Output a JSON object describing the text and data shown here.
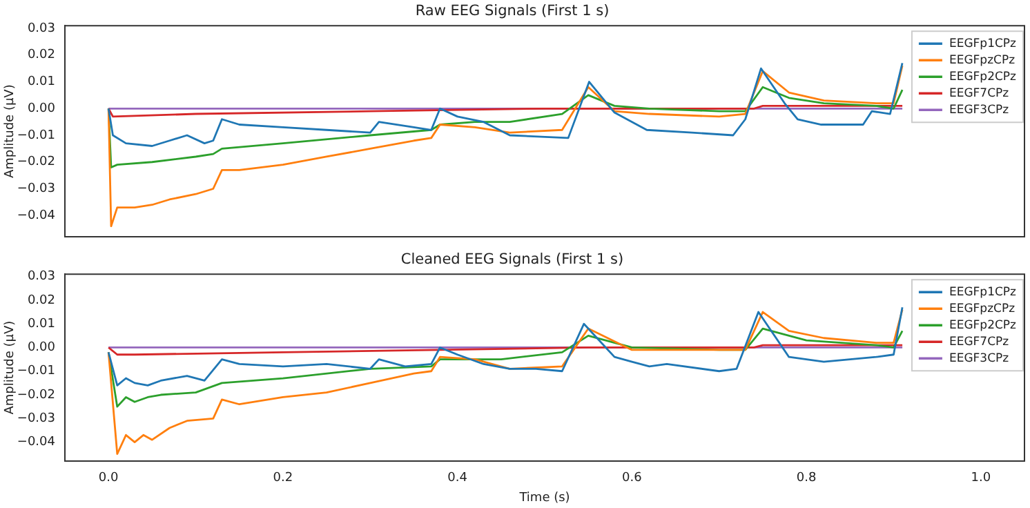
{
  "chart_data": [
    {
      "type": "line",
      "title": "Raw EEG Signals (First 1 s)",
      "ylabel": "Amplitude (μV)",
      "legend": "top right",
      "tick_labels": "y",
      "xlim": [
        -0.05,
        1.05
      ],
      "xticks": [
        {
          "value": 0,
          "label": null
        },
        {
          "value": 0.2,
          "label": null
        },
        {
          "value": 0.4,
          "label": null
        },
        {
          "value": 0.6,
          "label": null
        },
        {
          "value": 0.8,
          "label": null
        },
        {
          "value": 1,
          "label": null
        }
      ],
      "ylim": [
        -0.048,
        0.031
      ],
      "yticks": [
        {
          "value": -0.04,
          "label": "−0.04"
        },
        {
          "value": -0.03,
          "label": "−0.03"
        },
        {
          "value": -0.02,
          "label": "−0.02"
        },
        {
          "value": -0.01,
          "label": "−0.01"
        },
        {
          "value": 0,
          "label": "0.00"
        },
        {
          "value": 0.01,
          "label": "0.01"
        },
        {
          "value": 0.02,
          "label": "0.02"
        },
        {
          "value": 0.03,
          "label": "0.03"
        }
      ],
      "series": [
        {
          "name": "EEGFp1CPz",
          "color": "#1f77b4",
          "x": [
            0,
            0.005,
            0.02,
            0.05,
            0.07,
            0.09,
            0.11,
            0.12,
            0.13,
            0.15,
            0.2,
            0.25,
            0.3,
            0.31,
            0.35,
            0.37,
            0.38,
            0.4,
            0.43,
            0.46,
            0.527,
            0.551,
            0.58,
            0.617,
            0.669,
            0.716,
            0.73,
            0.748,
            0.775,
            0.79,
            0.817,
            0.865,
            0.875,
            0.896,
            0.91
          ],
          "values": [
            0,
            -0.01,
            -0.013,
            -0.014,
            -0.012,
            -0.01,
            -0.013,
            -0.012,
            -0.004,
            -0.006,
            -0.007,
            -0.008,
            -0.009,
            -0.005,
            -0.007,
            -0.008,
            0,
            -0.003,
            -0.005,
            -0.01,
            -0.011,
            0.01,
            -0.0015,
            -0.008,
            -0.009,
            -0.01,
            -0.004,
            0.015,
            0.002,
            -0.004,
            -0.006,
            -0.006,
            -0.001,
            -0.002,
            0.017
          ]
        },
        {
          "name": "EEGFpzCPz",
          "color": "#ff7f0e",
          "x": [
            0,
            0.003,
            0.01,
            0.03,
            0.05,
            0.07,
            0.1,
            0.12,
            0.13,
            0.15,
            0.2,
            0.25,
            0.3,
            0.35,
            0.37,
            0.38,
            0.42,
            0.46,
            0.52,
            0.55,
            0.58,
            0.62,
            0.7,
            0.73,
            0.75,
            0.78,
            0.82,
            0.88,
            0.9,
            0.91
          ],
          "values": [
            0,
            -0.044,
            -0.037,
            -0.037,
            -0.036,
            -0.034,
            -0.032,
            -0.03,
            -0.023,
            -0.023,
            -0.021,
            -0.018,
            -0.015,
            -0.012,
            -0.011,
            -0.006,
            -0.007,
            -0.009,
            -0.008,
            0.008,
            -0.001,
            -0.002,
            -0.003,
            -0.002,
            0.014,
            0.006,
            0.003,
            0.002,
            0.002,
            0.016
          ]
        },
        {
          "name": "EEGFp2CPz",
          "color": "#2ca02c",
          "x": [
            0,
            0.003,
            0.01,
            0.05,
            0.1,
            0.12,
            0.13,
            0.2,
            0.3,
            0.37,
            0.38,
            0.42,
            0.46,
            0.52,
            0.55,
            0.58,
            0.62,
            0.7,
            0.73,
            0.75,
            0.78,
            0.82,
            0.88,
            0.9,
            0.91
          ],
          "values": [
            0,
            -0.022,
            -0.021,
            -0.02,
            -0.018,
            -0.017,
            -0.015,
            -0.013,
            -0.01,
            -0.008,
            -0.006,
            -0.005,
            -0.005,
            -0.002,
            0.005,
            0.001,
            0,
            -0.001,
            -0.001,
            0.008,
            0.004,
            0.002,
            0.001,
            0,
            0.007
          ]
        },
        {
          "name": "EEGF7CPz",
          "color": "#d62728",
          "x": [
            0,
            0.005,
            0.1,
            0.3,
            0.5,
            0.74,
            0.75,
            0.9,
            0.91
          ],
          "values": [
            0,
            -0.003,
            -0.002,
            -0.001,
            0,
            0,
            0.001,
            0.001,
            0.001
          ]
        },
        {
          "name": "EEGF3CPz",
          "color": "#9467bd",
          "x": [
            0,
            0.91
          ],
          "values": [
            0,
            0
          ]
        }
      ]
    },
    {
      "type": "line",
      "title": "Cleaned EEG Signals (First 1 s)",
      "xlabel": "Time (s)",
      "ylabel": "Amplitude (μV)",
      "legend": "top right",
      "xlim": [
        -0.05,
        1.05
      ],
      "xticks": [
        {
          "value": 0,
          "label": "0.0"
        },
        {
          "value": 0.2,
          "label": "0.2"
        },
        {
          "value": 0.4,
          "label": "0.4"
        },
        {
          "value": 0.6,
          "label": "0.6"
        },
        {
          "value": 0.8,
          "label": "0.8"
        },
        {
          "value": 1,
          "label": "1.0"
        }
      ],
      "ylim": [
        -0.048,
        0.031
      ],
      "yticks": [
        {
          "value": -0.04,
          "label": "−0.04"
        },
        {
          "value": -0.03,
          "label": "−0.03"
        },
        {
          "value": -0.02,
          "label": "−0.02"
        },
        {
          "value": -0.01,
          "label": "−0.01"
        },
        {
          "value": 0,
          "label": "0.00"
        },
        {
          "value": 0.01,
          "label": "0.01"
        },
        {
          "value": 0.02,
          "label": "0.02"
        },
        {
          "value": 0.03,
          "label": "0.03"
        }
      ],
      "series": [
        {
          "name": "EEGFp1CPz",
          "color": "#1f77b4",
          "x": [
            0,
            0.01,
            0.02,
            0.03,
            0.045,
            0.06,
            0.09,
            0.11,
            0.13,
            0.15,
            0.2,
            0.25,
            0.3,
            0.31,
            0.34,
            0.37,
            0.38,
            0.4,
            0.43,
            0.46,
            0.49,
            0.52,
            0.545,
            0.58,
            0.6,
            0.62,
            0.64,
            0.7,
            0.72,
            0.745,
            0.78,
            0.82,
            0.85,
            0.88,
            0.9,
            0.91
          ],
          "values": [
            -0.002,
            -0.016,
            -0.013,
            -0.015,
            -0.016,
            -0.014,
            -0.012,
            -0.014,
            -0.005,
            -0.007,
            -0.008,
            -0.007,
            -0.009,
            -0.005,
            -0.008,
            -0.007,
            0,
            -0.003,
            -0.007,
            -0.009,
            -0.009,
            -0.01,
            0.01,
            -0.004,
            -0.006,
            -0.008,
            -0.007,
            -0.01,
            -0.009,
            0.015,
            -0.004,
            -0.006,
            -0.005,
            -0.004,
            -0.003,
            0.017
          ]
        },
        {
          "name": "EEGFpzCPz",
          "color": "#ff7f0e",
          "x": [
            0,
            0.01,
            0.02,
            0.03,
            0.04,
            0.05,
            0.07,
            0.09,
            0.12,
            0.13,
            0.15,
            0.2,
            0.25,
            0.3,
            0.35,
            0.37,
            0.38,
            0.42,
            0.46,
            0.52,
            0.55,
            0.6,
            0.65,
            0.7,
            0.73,
            0.75,
            0.78,
            0.82,
            0.88,
            0.9,
            0.91
          ],
          "values": [
            -0.002,
            -0.045,
            -0.037,
            -0.04,
            -0.037,
            -0.039,
            -0.034,
            -0.031,
            -0.03,
            -0.022,
            -0.024,
            -0.021,
            -0.019,
            -0.015,
            -0.011,
            -0.01,
            -0.004,
            -0.005,
            -0.009,
            -0.008,
            0.008,
            -0.001,
            -0.001,
            -0.001,
            -0.001,
            0.015,
            0.007,
            0.004,
            0.002,
            0.002,
            0.016
          ]
        },
        {
          "name": "EEGFp2CPz",
          "color": "#2ca02c",
          "x": [
            0,
            0.01,
            0.02,
            0.03,
            0.045,
            0.06,
            0.1,
            0.13,
            0.2,
            0.3,
            0.37,
            0.38,
            0.45,
            0.52,
            0.55,
            0.6,
            0.7,
            0.73,
            0.75,
            0.8,
            0.88,
            0.9,
            0.91
          ],
          "values": [
            -0.002,
            -0.025,
            -0.021,
            -0.023,
            -0.021,
            -0.02,
            -0.019,
            -0.015,
            -0.013,
            -0.009,
            -0.008,
            -0.005,
            -0.005,
            -0.002,
            0.005,
            0,
            -0.001,
            -0.001,
            0.008,
            0.003,
            0.001,
            0,
            0.007
          ]
        },
        {
          "name": "EEGF7CPz",
          "color": "#d62728",
          "x": [
            0,
            0.01,
            0.03,
            0.2,
            0.38,
            0.55,
            0.74,
            0.75,
            0.91
          ],
          "values": [
            0,
            -0.003,
            -0.003,
            -0.002,
            -0.001,
            0,
            0,
            0.001,
            0.001
          ]
        },
        {
          "name": "EEGF3CPz",
          "color": "#9467bd",
          "x": [
            0,
            0.91
          ],
          "values": [
            0,
            0
          ]
        }
      ]
    }
  ]
}
